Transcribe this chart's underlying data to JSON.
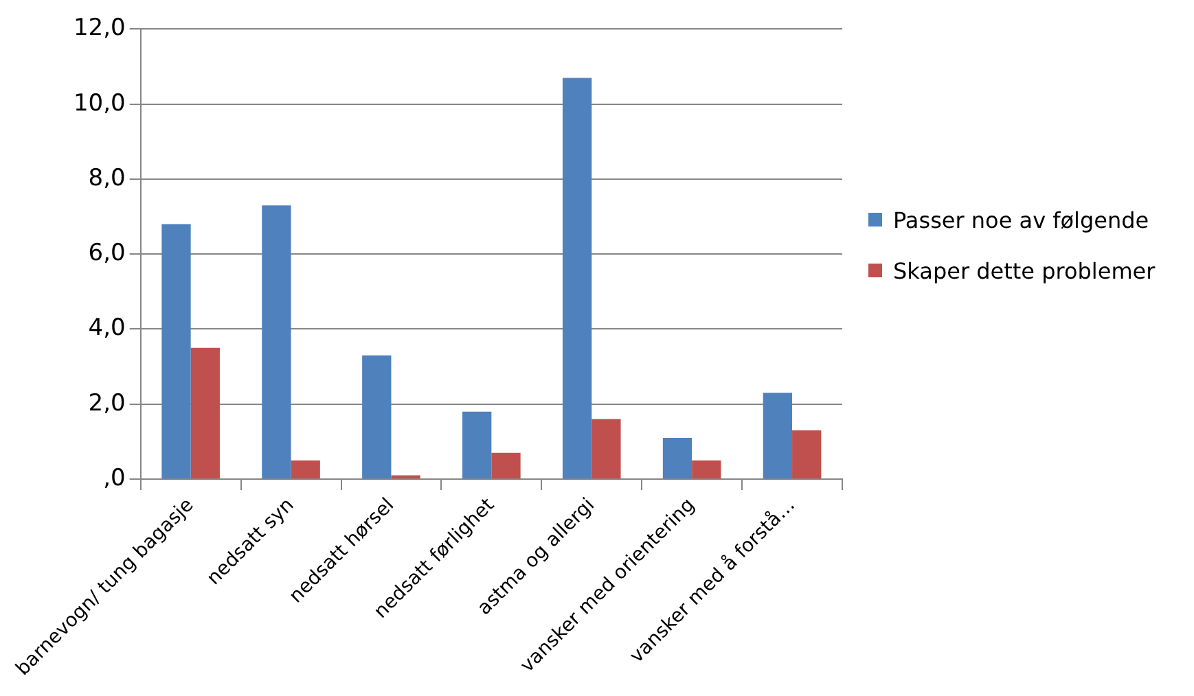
{
  "chart_data": {
    "type": "bar",
    "categories": [
      "barnevogn/ tung bagasje",
      "nedsatt syn",
      "nedsatt hørsel",
      "nedsatt førlighet",
      "astma og allergi",
      "vansker med orientering",
      "vansker med å forstå…"
    ],
    "series": [
      {
        "name": "Passer noe av følgende",
        "color": "#4f81bd",
        "values": [
          6.8,
          7.3,
          3.3,
          1.8,
          10.7,
          1.1,
          2.3
        ]
      },
      {
        "name": "Skaper dette problemer",
        "color": "#c0504d",
        "values": [
          3.5,
          0.5,
          0.1,
          0.7,
          1.6,
          0.5,
          1.3
        ]
      }
    ],
    "ylim": [
      0,
      12
    ],
    "yticks": [
      {
        "value": 0,
        "label": ",0"
      },
      {
        "value": 2,
        "label": "2,0"
      },
      {
        "value": 4,
        "label": "4,0"
      },
      {
        "value": 6,
        "label": "6,0"
      },
      {
        "value": 8,
        "label": "8,0"
      },
      {
        "value": 10,
        "label": "10,0"
      },
      {
        "value": 12,
        "label": "12,0"
      }
    ],
    "grid": "y",
    "legend": "right"
  }
}
